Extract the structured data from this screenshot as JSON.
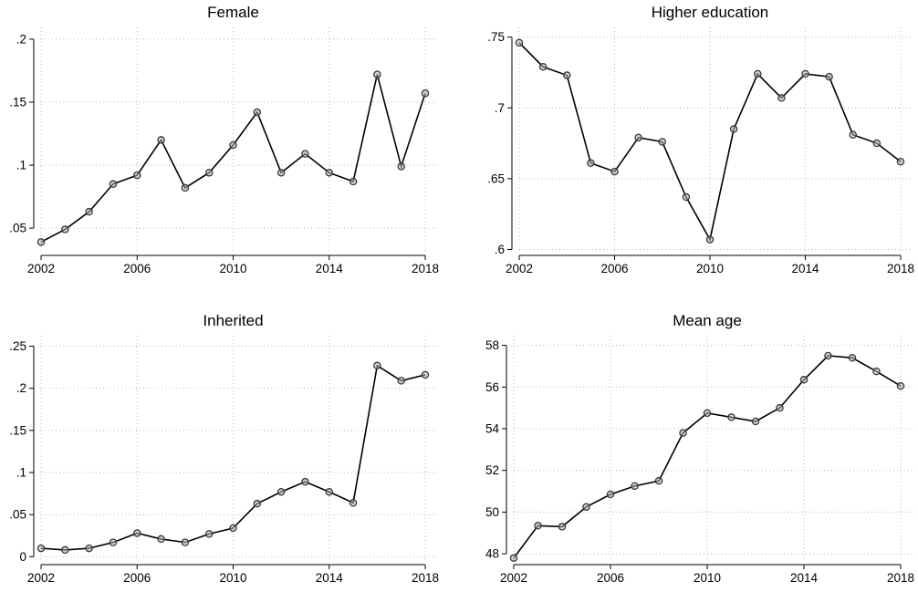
{
  "chart_data": [
    {
      "type": "line",
      "title": "Female",
      "x": [
        2002,
        2003,
        2004,
        2005,
        2006,
        2007,
        2008,
        2009,
        2010,
        2011,
        2012,
        2013,
        2014,
        2015,
        2016,
        2017,
        2018
      ],
      "series": [
        {
          "values": [
            0.039,
            0.049,
            0.063,
            0.085,
            0.092,
            0.12,
            0.082,
            0.094,
            0.116,
            0.142,
            0.094,
            0.109,
            0.094,
            0.087,
            0.172,
            0.099,
            0.157
          ]
        }
      ],
      "xticks": [
        2002,
        2006,
        2010,
        2014,
        2018
      ],
      "yticks": [
        0.05,
        0.1,
        0.15,
        0.2
      ],
      "ytick_labels": [
        ".05",
        ".1",
        ".15",
        ".2"
      ],
      "xlim": [
        2002,
        2018
      ],
      "ylim": [
        0.032,
        0.205
      ],
      "grid": true
    },
    {
      "type": "line",
      "title": "Higher education",
      "x": [
        2002,
        2003,
        2004,
        2005,
        2006,
        2007,
        2008,
        2009,
        2010,
        2011,
        2012,
        2013,
        2014,
        2015,
        2016,
        2017,
        2018
      ],
      "series": [
        {
          "values": [
            0.746,
            0.729,
            0.723,
            0.661,
            0.655,
            0.679,
            0.676,
            0.637,
            0.607,
            0.685,
            0.724,
            0.707,
            0.724,
            0.722,
            0.681,
            0.675,
            0.662
          ]
        }
      ],
      "xticks": [
        2002,
        2006,
        2010,
        2014,
        2018
      ],
      "yticks": [
        0.6,
        0.65,
        0.7,
        0.75
      ],
      "ytick_labels": [
        ".6",
        ".65",
        ".7",
        ".75"
      ],
      "xlim": [
        2002,
        2018
      ],
      "ylim": [
        0.599,
        0.753
      ],
      "grid": true
    },
    {
      "type": "line",
      "title": "Inherited",
      "x": [
        2002,
        2003,
        2004,
        2005,
        2006,
        2007,
        2008,
        2009,
        2010,
        2011,
        2012,
        2013,
        2014,
        2015,
        2016,
        2017,
        2018
      ],
      "series": [
        {
          "values": [
            0.01,
            0.008,
            0.01,
            0.017,
            0.028,
            0.021,
            0.017,
            0.027,
            0.034,
            0.063,
            0.077,
            0.089,
            0.077,
            0.064,
            0.227,
            0.209,
            0.216
          ]
        }
      ],
      "xticks": [
        2002,
        2006,
        2010,
        2014,
        2018
      ],
      "yticks": [
        0,
        0.05,
        0.1,
        0.15,
        0.2,
        0.25
      ],
      "ytick_labels": [
        "0",
        ".05",
        ".1",
        ".15",
        ".2",
        ".25"
      ],
      "xlim": [
        2002,
        2018
      ],
      "ylim": [
        -0.004,
        0.256
      ],
      "grid": true
    },
    {
      "type": "line",
      "title": "Mean age",
      "x": [
        2002,
        2003,
        2004,
        2005,
        2006,
        2007,
        2008,
        2009,
        2010,
        2011,
        2012,
        2013,
        2014,
        2015,
        2016,
        2017,
        2018
      ],
      "series": [
        {
          "values": [
            47.8,
            49.35,
            49.3,
            50.25,
            50.85,
            51.25,
            51.5,
            53.8,
            54.75,
            54.55,
            54.35,
            55.0,
            56.35,
            57.5,
            57.4,
            56.75,
            56.05
          ]
        }
      ],
      "xticks": [
        2002,
        2006,
        2010,
        2014,
        2018
      ],
      "yticks": [
        48,
        50,
        52,
        54,
        56,
        58
      ],
      "ytick_labels": [
        "48",
        "50",
        "52",
        "54",
        "56",
        "58"
      ],
      "xlim": [
        2002,
        2018
      ],
      "ylim": [
        47.7,
        58.2
      ],
      "grid": true
    }
  ]
}
